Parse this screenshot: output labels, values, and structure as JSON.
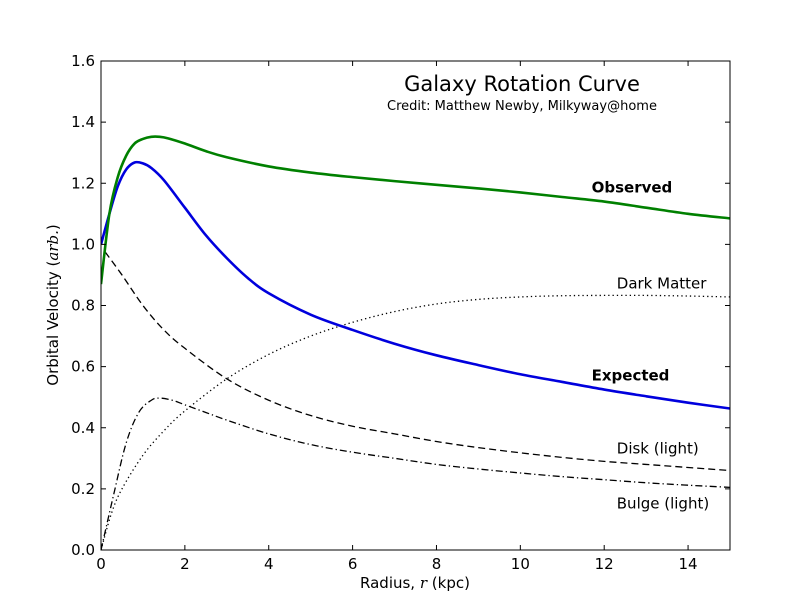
{
  "chart_data": {
    "type": "line",
    "title": "Galaxy Rotation Curve",
    "subtitle": "Credit:  Matthew Newby, Milkyway@home",
    "xlabel_prefix": "Radius, ",
    "xlabel_var": "r",
    "xlabel_suffix": " (kpc)",
    "ylabel_prefix": "Orbital Velocity (",
    "ylabel_var": "arb.",
    "ylabel_suffix": ")",
    "xlim": [
      0,
      15
    ],
    "ylim": [
      0.0,
      1.6
    ],
    "xticks": [
      0,
      2,
      4,
      6,
      8,
      10,
      12,
      14
    ],
    "yticks": [
      0.0,
      0.2,
      0.4,
      0.6,
      0.8,
      1.0,
      1.2,
      1.4,
      1.6
    ],
    "ytick_labels": [
      "0.0",
      "0.2",
      "0.4",
      "0.6",
      "0.8",
      "1.0",
      "1.2",
      "1.4",
      "1.6"
    ],
    "grid": false,
    "legend": "none",
    "series": [
      {
        "name": "Observed",
        "color": "#008000",
        "style": "solid",
        "x": [
          0,
          0.2,
          0.4,
          0.6,
          0.8,
          1.0,
          1.2,
          1.4,
          1.6,
          2.0,
          2.5,
          3.0,
          4.0,
          5.0,
          6.0,
          7.0,
          8.0,
          9.0,
          10.0,
          11.0,
          12.0,
          13.0,
          14.0,
          15.0
        ],
        "y": [
          0.87,
          1.1,
          1.22,
          1.29,
          1.33,
          1.345,
          1.352,
          1.352,
          1.347,
          1.33,
          1.305,
          1.285,
          1.255,
          1.235,
          1.22,
          1.207,
          1.195,
          1.183,
          1.17,
          1.155,
          1.14,
          1.12,
          1.1,
          1.085
        ]
      },
      {
        "name": "Expected",
        "color": "#0000dd",
        "style": "solid",
        "x": [
          0,
          0.2,
          0.4,
          0.6,
          0.8,
          1.0,
          1.2,
          1.5,
          2.0,
          2.5,
          3.0,
          3.5,
          4.0,
          5.0,
          6.0,
          7.0,
          8.0,
          9.0,
          10.0,
          11.0,
          12.0,
          13.0,
          14.0,
          15.0
        ],
        "y": [
          1.0,
          1.1,
          1.19,
          1.245,
          1.268,
          1.265,
          1.25,
          1.21,
          1.12,
          1.03,
          0.955,
          0.89,
          0.84,
          0.77,
          0.72,
          0.675,
          0.637,
          0.605,
          0.575,
          0.55,
          0.525,
          0.503,
          0.482,
          0.463
        ]
      },
      {
        "name": "Dark Matter",
        "color": "#000000",
        "style": "dotted",
        "x": [
          0,
          0.25,
          0.5,
          1.0,
          1.5,
          2.0,
          3.0,
          4.0,
          5.0,
          6.0,
          7.0,
          8.0,
          9.0,
          10.0,
          11.0,
          12.0,
          13.0,
          14.0,
          15.0
        ],
        "y": [
          0.0,
          0.12,
          0.2,
          0.31,
          0.39,
          0.455,
          0.56,
          0.64,
          0.7,
          0.745,
          0.78,
          0.805,
          0.82,
          0.828,
          0.832,
          0.833,
          0.833,
          0.831,
          0.828
        ]
      },
      {
        "name": "Disk (light)",
        "color": "#000000",
        "style": "dashed",
        "x": [
          0.1,
          0.5,
          1.0,
          1.5,
          2.0,
          3.0,
          4.0,
          5.0,
          6.0,
          7.0,
          8.0,
          9.0,
          10.0,
          11.0,
          12.0,
          13.0,
          14.0,
          15.0
        ],
        "y": [
          0.975,
          0.9,
          0.8,
          0.72,
          0.66,
          0.56,
          0.49,
          0.44,
          0.405,
          0.38,
          0.355,
          0.335,
          0.318,
          0.303,
          0.29,
          0.28,
          0.27,
          0.26
        ]
      },
      {
        "name": "Bulge (light)",
        "color": "#000000",
        "style": "dashdot",
        "x": [
          0,
          0.3,
          0.6,
          0.9,
          1.2,
          1.4,
          1.7,
          2.0,
          2.5,
          3.0,
          4.0,
          5.0,
          6.0,
          7.0,
          8.0,
          9.0,
          10.0,
          11.0,
          12.0,
          13.0,
          14.0,
          15.0
        ],
        "y": [
          0.0,
          0.18,
          0.35,
          0.45,
          0.49,
          0.497,
          0.49,
          0.475,
          0.45,
          0.425,
          0.38,
          0.345,
          0.32,
          0.3,
          0.28,
          0.265,
          0.252,
          0.24,
          0.23,
          0.22,
          0.212,
          0.205
        ]
      }
    ],
    "annotations": [
      {
        "text": "Observed",
        "x": 11.7,
        "y": 1.17,
        "bold": true
      },
      {
        "text": "Expected",
        "x": 11.7,
        "y": 0.555,
        "bold": true
      },
      {
        "text": "Dark Matter",
        "x": 12.3,
        "y": 0.855,
        "bold": false
      },
      {
        "text": "Disk (light)",
        "x": 12.3,
        "y": 0.315,
        "bold": false
      },
      {
        "text": "Bulge (light)",
        "x": 12.3,
        "y": 0.135,
        "bold": false
      }
    ]
  }
}
